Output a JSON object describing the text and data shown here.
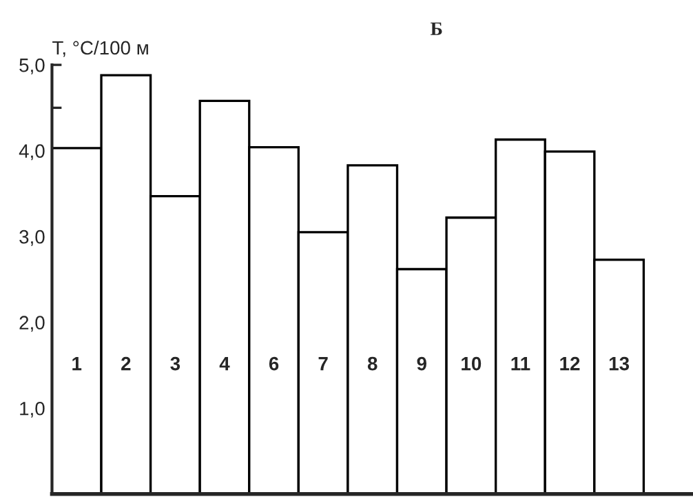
{
  "chart_data": {
    "type": "bar",
    "title": "Б",
    "ylabel": "T, °C/100 м",
    "categories": [
      "1",
      "2",
      "3",
      "4",
      "6",
      "7",
      "8",
      "9",
      "10",
      "11",
      "12",
      "13"
    ],
    "values": [
      4.03,
      4.88,
      3.47,
      4.58,
      4.04,
      3.05,
      3.83,
      2.62,
      3.22,
      4.13,
      3.99,
      2.73
    ],
    "color": "#ffffff",
    "ylim": [
      0,
      5.0
    ],
    "yticks": [
      {
        "value": 0,
        "label": null
      },
      {
        "value": 0.5,
        "label": null
      },
      {
        "value": 1.0,
        "label": "1,0"
      },
      {
        "value": 1.5,
        "label": null
      },
      {
        "value": 2.0,
        "label": "2,0"
      },
      {
        "value": 2.5,
        "label": null
      },
      {
        "value": 3.0,
        "label": "3,0"
      },
      {
        "value": 3.5,
        "label": null
      },
      {
        "value": 4.0,
        "label": "4,0"
      },
      {
        "value": 4.5,
        "label": null
      },
      {
        "value": 5.0,
        "label": "5,0"
      }
    ],
    "tick_labels": "y",
    "grid": false,
    "legend": false
  }
}
